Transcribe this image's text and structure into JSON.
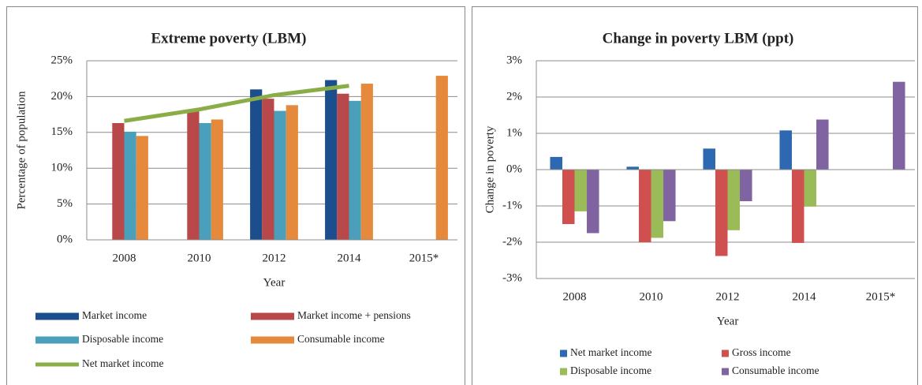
{
  "chart_data": [
    {
      "type": "bar",
      "title": "Extreme poverty (LBM)",
      "x_label": "Year",
      "y_label": "Percentage of population",
      "categories": [
        "2008",
        "2010",
        "2012",
        "2014",
        "2015*"
      ],
      "ylim": [
        0,
        25
      ],
      "yticks": [
        {
          "value": 0,
          "label": "0%"
        },
        {
          "value": 5,
          "label": "5%"
        },
        {
          "value": 10,
          "label": "10%"
        },
        {
          "value": 15,
          "label": "15%"
        },
        {
          "value": 20,
          "label": "20%"
        },
        {
          "value": 25,
          "label": "25%"
        }
      ],
      "grid": true,
      "series": [
        {
          "name": "Market income",
          "type": "bar",
          "color": "#1c4d8c",
          "values": [
            null,
            null,
            21.0,
            22.3,
            null
          ]
        },
        {
          "name": "Market income + pensions",
          "type": "bar",
          "color": "#b8484a",
          "values": [
            16.3,
            18.1,
            19.7,
            20.4,
            null
          ]
        },
        {
          "name": "Disposable income",
          "type": "bar",
          "color": "#4a9fba",
          "values": [
            15.1,
            16.3,
            18.0,
            19.4,
            null
          ]
        },
        {
          "name": "Consumable income",
          "type": "bar",
          "color": "#e58a3c",
          "values": [
            14.5,
            16.8,
            18.8,
            21.8,
            22.9
          ]
        },
        {
          "name": "Net market income",
          "type": "line",
          "color": "#8aad48",
          "values": [
            16.6,
            18.2,
            20.2,
            21.5,
            null
          ]
        }
      ]
    },
    {
      "type": "bar",
      "title": "Change in poverty LBM (ppt)",
      "x_label": "Year",
      "y_label": "Change in poverty",
      "categories": [
        "2008",
        "2010",
        "2012",
        "2014",
        "2015*"
      ],
      "ylim": [
        -3,
        3
      ],
      "yticks": [
        {
          "value": -3,
          "label": "-3%"
        },
        {
          "value": -2,
          "label": "-2%"
        },
        {
          "value": -1,
          "label": "-1%"
        },
        {
          "value": 0,
          "label": "0%"
        },
        {
          "value": 1,
          "label": "1%"
        },
        {
          "value": 2,
          "label": "2%"
        },
        {
          "value": 3,
          "label": "3%"
        }
      ],
      "grid": true,
      "series": [
        {
          "name": "Net market income",
          "type": "bar",
          "color": "#2d68b0",
          "values": [
            0.35,
            0.08,
            0.58,
            1.08,
            null
          ]
        },
        {
          "name": "Gross income",
          "type": "bar",
          "color": "#cf504e",
          "values": [
            -1.5,
            -2.0,
            -2.38,
            -2.02,
            null
          ]
        },
        {
          "name": "Disposable income",
          "type": "bar",
          "color": "#9bbb59",
          "values": [
            -1.15,
            -1.88,
            -1.67,
            -1.02,
            null
          ]
        },
        {
          "name": "Consumable income",
          "type": "bar",
          "color": "#8064a2",
          "values": [
            -1.75,
            -1.42,
            -0.87,
            1.38,
            2.42
          ]
        }
      ]
    }
  ]
}
